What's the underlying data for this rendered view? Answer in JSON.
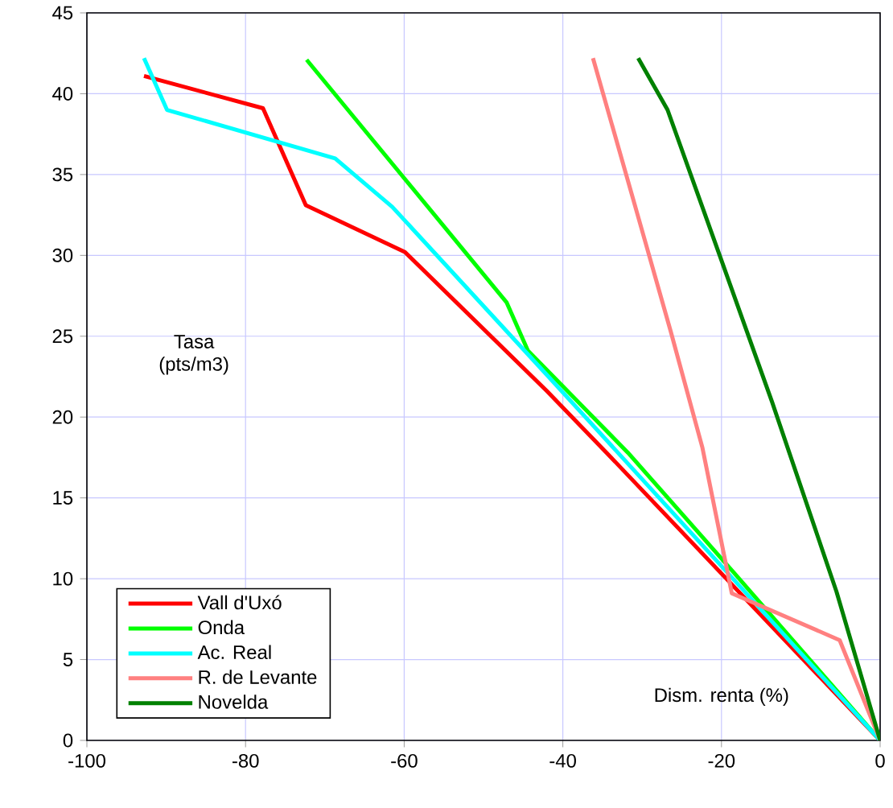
{
  "chart_data": {
    "type": "line",
    "xlabel": "Dism. renta (%)",
    "ylabel": "Tasa (pts/m3)",
    "xlim": [
      -100,
      0
    ],
    "xticks": [
      -100,
      -80,
      -60,
      -40,
      -20,
      0
    ],
    "ylim": [
      0,
      45
    ],
    "yticks": [
      0,
      5,
      10,
      15,
      20,
      25,
      30,
      35,
      40,
      45
    ],
    "grid": true,
    "legend": "bottom left",
    "marker": "none",
    "line_style": "solid",
    "series": [
      {
        "name": "Vall d'Uxó",
        "color": "#ff0000",
        "x": [
          -92.8,
          -77.8,
          -72.4,
          -59.9,
          -42,
          -34.5,
          0
        ],
        "values": [
          41.1,
          39.1,
          33.1,
          30.2,
          21.6,
          17.8,
          0
        ]
      },
      {
        "name": "Onda",
        "color": "#00ff00",
        "x": [
          -72.3,
          -47.1,
          -44.4,
          -31.8,
          -18.3,
          0
        ],
        "values": [
          42.1,
          27.1,
          24.1,
          17.8,
          10.3,
          0
        ]
      },
      {
        "name": "Ac. Real",
        "color": "#00ffff",
        "x": [
          -92.8,
          -89.9,
          -68.7,
          -61.5,
          -42,
          -19.1,
          0
        ],
        "values": [
          42.2,
          39.0,
          36.0,
          33.0,
          22.6,
          10.3,
          0
        ]
      },
      {
        "name": "R. de Levante",
        "color": "#ff8080",
        "x": [
          -36.2,
          -30.8,
          -26.4,
          -22.4,
          -18.7,
          -5.1,
          0
        ],
        "values": [
          42.2,
          32.9,
          25.3,
          18.1,
          9.1,
          6.2,
          0
        ]
      },
      {
        "name": "Novelda",
        "color": "#008000",
        "x": [
          -30.5,
          -26.8,
          -20.3,
          -13.6,
          -5.5,
          0
        ],
        "values": [
          42.2,
          39.0,
          30.1,
          20.9,
          9.2,
          0
        ]
      }
    ]
  }
}
